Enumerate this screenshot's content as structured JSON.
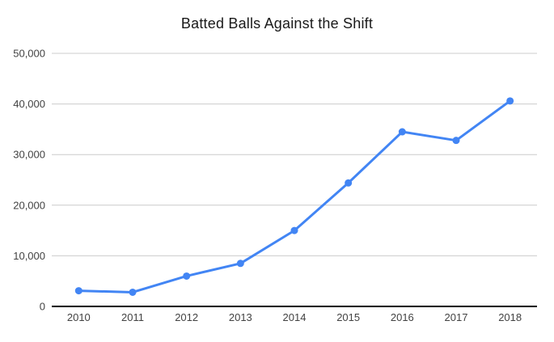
{
  "chart_data": {
    "type": "line",
    "title": "Batted Balls Against the Shift",
    "categories": [
      "2010",
      "2011",
      "2012",
      "2013",
      "2014",
      "2015",
      "2016",
      "2017",
      "2018"
    ],
    "series": [
      {
        "name": "Batted Balls Against the Shift",
        "values": [
          3100,
          2800,
          6000,
          8500,
          15000,
          24400,
          34500,
          32800,
          40600
        ]
      }
    ],
    "xlabel": "",
    "ylabel": "",
    "ylim": [
      0,
      50000
    ],
    "yticks": [
      0,
      10000,
      20000,
      30000,
      40000,
      50000
    ],
    "ytick_labels": [
      "0",
      "10,000",
      "20,000",
      "30,000",
      "40,000",
      "50,000"
    ],
    "grid": true,
    "legend_position": "none",
    "colors": {
      "line": "#4285f4",
      "point": "#4285f4",
      "gridline": "#cccccc",
      "axis": "#000000",
      "tick_label": "#424242",
      "title": "#1a1a1a",
      "background": "#ffffff"
    }
  }
}
